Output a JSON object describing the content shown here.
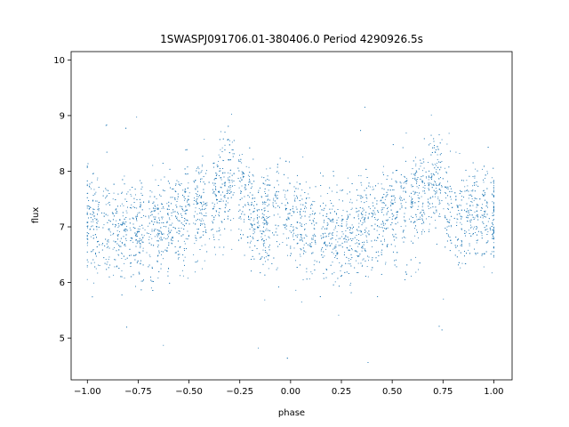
{
  "chart_data": {
    "type": "scatter",
    "title": "1SWASPJ091706.01-380406.0 Period 4290926.5s",
    "xlabel": "phase",
    "ylabel": "flux",
    "xlim": [
      -1.08,
      1.09
    ],
    "ylim": [
      4.25,
      10.15
    ],
    "xticks": [
      -1.0,
      -0.75,
      -0.5,
      -0.25,
      0.0,
      0.25,
      0.5,
      0.75,
      1.0
    ],
    "xtick_labels": [
      "−1.00",
      "−0.75",
      "−0.50",
      "−0.25",
      "0.00",
      "0.25",
      "0.50",
      "0.75",
      "1.00"
    ],
    "yticks": [
      5,
      6,
      7,
      8,
      9,
      10
    ],
    "ytick_labels": [
      "5",
      "6",
      "7",
      "8",
      "9",
      "10"
    ],
    "grid": false,
    "marker_color": "#1f77b4",
    "folded_curve": {
      "phase": [
        0.0,
        0.05,
        0.1,
        0.15,
        0.2,
        0.25,
        0.3,
        0.35,
        0.4,
        0.45,
        0.5,
        0.55,
        0.6,
        0.65,
        0.7,
        0.75,
        0.8,
        0.85,
        0.9,
        0.95
      ],
      "flux": [
        7.2,
        7.0,
        7.0,
        6.9,
        6.9,
        6.8,
        6.9,
        7.0,
        7.0,
        7.1,
        7.3,
        7.3,
        7.4,
        7.6,
        7.8,
        7.7,
        7.3,
        7.0,
        7.3,
        7.3
      ]
    },
    "scatter_sd": 0.45,
    "outlier_range": [
      4.5,
      9.7
    ]
  }
}
